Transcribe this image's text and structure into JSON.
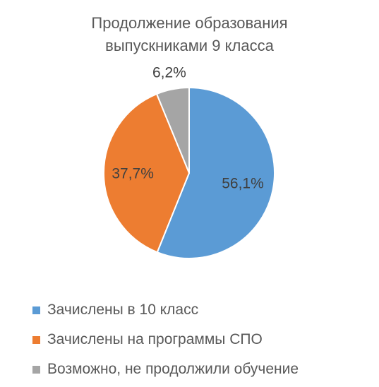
{
  "chart_data": {
    "type": "pie",
    "title_lines": [
      "Продолжение образования",
      "выпускниками 9 класса"
    ],
    "series": [
      {
        "values": [
          56.1,
          37.7,
          6.2
        ],
        "labels": [
          "56,1%",
          "37,7%",
          "6,2%"
        ]
      }
    ],
    "categories": [
      "Зачислены в 10 класс",
      "Зачислены на программы СПО",
      "Возможно, не продолжили обучение"
    ],
    "colors": [
      "#5B9BD5",
      "#ED7D31",
      "#A5A5A5"
    ],
    "start_angle": "12 o'clock",
    "direction": "clockwise",
    "legend_position": "bottom"
  }
}
